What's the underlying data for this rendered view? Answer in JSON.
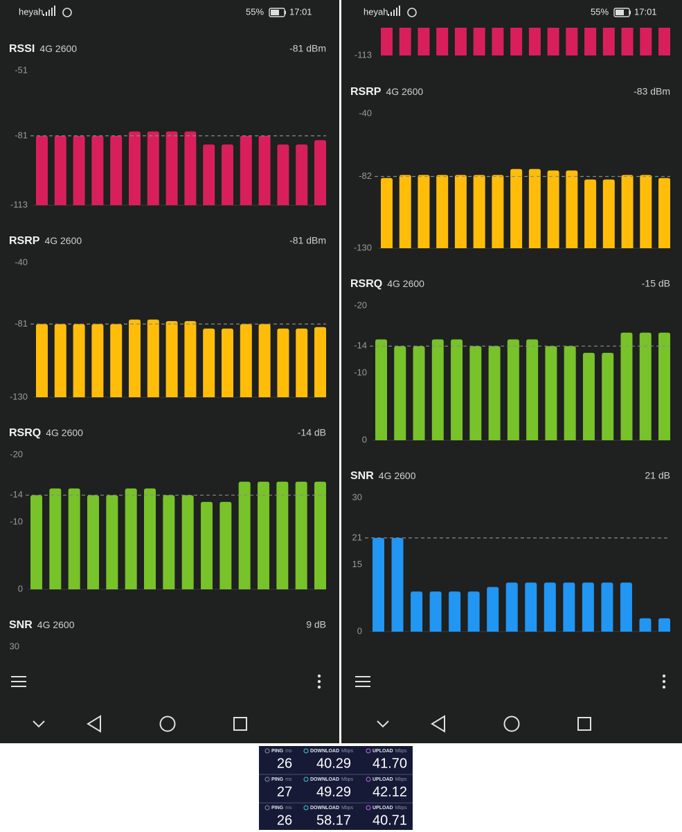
{
  "screens": [
    {
      "status": {
        "carrier": "heyah",
        "battery": "55%",
        "time": "17:01"
      },
      "panels": [
        {
          "label": "RSSI",
          "band": "4G 2600",
          "current": "-81 dBm",
          "color": "#d81f5c",
          "ylim": [
            -113,
            -51
          ],
          "yticks": [
            -51,
            -81,
            -113
          ],
          "reference": -81,
          "values": [
            -81,
            -81,
            -81,
            -81,
            -81,
            -79,
            -79,
            -79,
            -79,
            -85,
            -85,
            -81,
            -81,
            -85,
            -85,
            -83
          ]
        },
        {
          "label": "RSRP",
          "band": "4G 2600",
          "current": "-81 dBm",
          "color": "#ffbd0a",
          "ylim": [
            -130,
            -40
          ],
          "yticks": [
            -40,
            -81,
            -130
          ],
          "reference": -81,
          "values": [
            -81,
            -81,
            -81,
            -81,
            -81,
            -78,
            -78,
            -79,
            -79,
            -84,
            -84,
            -81,
            -81,
            -84,
            -84,
            -83
          ]
        },
        {
          "label": "RSRQ",
          "band": "4G 2600",
          "current": "-14 dB",
          "color": "#78c22a",
          "ylim": [
            0,
            -20
          ],
          "yticks": [
            -20,
            -14,
            -10,
            0
          ],
          "reference": -14,
          "values": [
            -14,
            -15,
            -15,
            -14,
            -14,
            -15,
            -15,
            -14,
            -14,
            -13,
            -13,
            -16,
            -16,
            -16,
            -16,
            -16
          ]
        },
        {
          "label": "SNR",
          "band": "4G 2600",
          "current": "9 dB",
          "yticks": [
            30
          ]
        }
      ]
    },
    {
      "status": {
        "carrier": "heyah",
        "battery": "55%",
        "time": "17:01"
      },
      "panels": [
        {
          "color": "#d81f5c",
          "yticks": [
            -113
          ]
        },
        {
          "label": "RSRP",
          "band": "4G 2600",
          "current": "-83 dBm",
          "color": "#ffbd0a",
          "ylim": [
            -130,
            -40
          ],
          "yticks": [
            -40,
            -82,
            -130
          ],
          "reference": -82,
          "values": [
            -83,
            -81,
            -81,
            -81,
            -81,
            -81,
            -81,
            -77,
            -77,
            -78,
            -78,
            -84,
            -84,
            -81,
            -81,
            -83
          ]
        },
        {
          "label": "RSRQ",
          "band": "4G 2600",
          "current": "-15 dB",
          "color": "#78c22a",
          "ylim": [
            0,
            -20
          ],
          "yticks": [
            -20,
            -14,
            -10,
            0
          ],
          "reference": -14,
          "values": [
            -15,
            -14,
            -14,
            -15,
            -15,
            -14,
            -14,
            -15,
            -15,
            -14,
            -14,
            -13,
            -13,
            -16,
            -16,
            -16
          ]
        },
        {
          "label": "SNR",
          "band": "4G 2600",
          "current": "21 dB",
          "color": "#2196f3",
          "ylim": [
            0,
            30
          ],
          "yticks": [
            30,
            21,
            15,
            0
          ],
          "reference": 21,
          "values": [
            21,
            21,
            9,
            9,
            9,
            9,
            10,
            11,
            11,
            11,
            11,
            11,
            11,
            11,
            3,
            3
          ]
        }
      ]
    }
  ],
  "speedtest": {
    "headers": [
      {
        "name": "PING",
        "unit": "ms"
      },
      {
        "name": "DOWNLOAD",
        "unit": "Mbps"
      },
      {
        "name": "UPLOAD",
        "unit": "Mbps"
      }
    ],
    "rows": [
      [
        "26",
        "40.29",
        "41.70"
      ],
      [
        "27",
        "49.29",
        "42.12"
      ],
      [
        "26",
        "58.17",
        "40.71"
      ]
    ]
  }
}
